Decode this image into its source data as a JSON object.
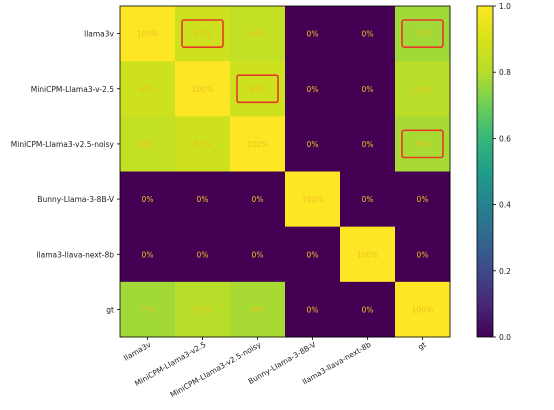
{
  "chart_data": {
    "type": "heatmap",
    "rows": [
      "llama3v",
      "MiniCPM-Llama3-v-2.5",
      "MiniCPM-Llama3-v2.5-noisy",
      "Bunny-Llama-3-8B-V",
      "llama3-llava-next-8b",
      "gt"
    ],
    "cols": [
      "llama3v",
      "MiniCPM-Llama3-v2.5",
      "MiniCPM-Llama3-v2.5-noisy",
      "Bunny-Llama-3-8B-V",
      "llama3-llava-next-8b",
      "gt"
    ],
    "values": [
      [
        1.0,
        0.87,
        0.84,
        0.0,
        0.0,
        0.77
      ],
      [
        0.87,
        1.0,
        0.87,
        0.0,
        0.0,
        0.81
      ],
      [
        0.84,
        0.87,
        1.0,
        0.0,
        0.0,
        0.78
      ],
      [
        0.0,
        0.0,
        0.0,
        1.0,
        0.0,
        0.0
      ],
      [
        0.0,
        0.0,
        0.0,
        0.0,
        1.0,
        0.0
      ],
      [
        0.77,
        0.81,
        0.78,
        0.0,
        0.0,
        1.0
      ]
    ],
    "cell_labels": [
      [
        "100%",
        "87%",
        "84%",
        "0%",
        "0%",
        "77%"
      ],
      [
        "87%",
        "100%",
        "87%",
        "0%",
        "0%",
        "81%"
      ],
      [
        "84%",
        "87%",
        "100%",
        "0%",
        "0%",
        "78%"
      ],
      [
        "0%",
        "0%",
        "0%",
        "100%",
        "0%",
        "0%"
      ],
      [
        "0%",
        "0%",
        "0%",
        "0%",
        "100%",
        "0%"
      ],
      [
        "77%",
        "81%",
        "78%",
        "0%",
        "0%",
        "100%"
      ]
    ],
    "highlighted_cells": [
      [
        0,
        1
      ],
      [
        0,
        5
      ],
      [
        1,
        2
      ],
      [
        2,
        5
      ]
    ],
    "highlight_color": "#e8382a",
    "colormap": "viridis",
    "label_color": "#f0c020",
    "colorbar": {
      "range": [
        0,
        1
      ],
      "ticks": [
        0.0,
        0.2,
        0.4,
        0.6,
        0.8,
        1.0
      ],
      "tick_labels": [
        "0.0",
        "0.2",
        "0.4",
        "0.6",
        "0.8",
        "1.0"
      ]
    },
    "title": "",
    "xlabel": "",
    "ylabel": ""
  }
}
